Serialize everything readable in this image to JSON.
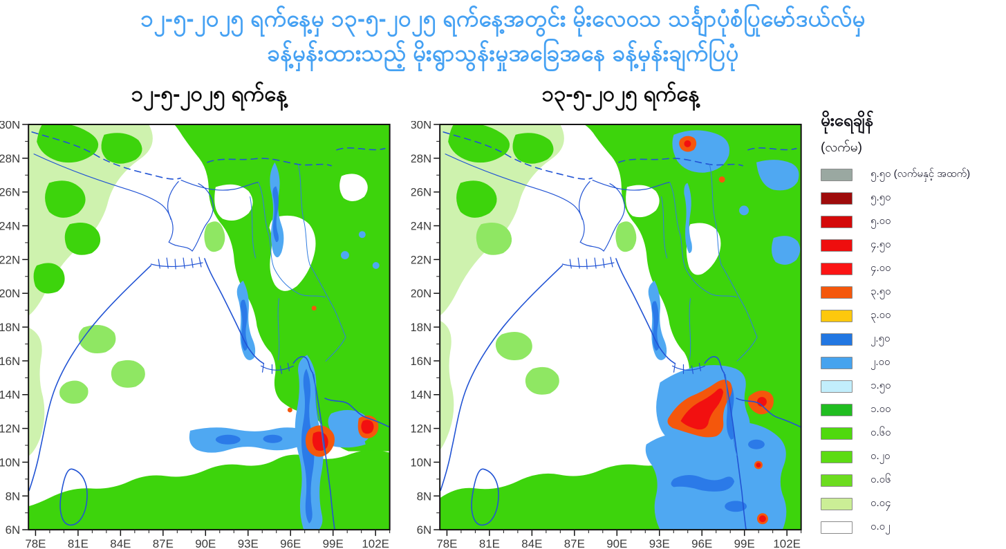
{
  "figure_title": {
    "line1": "၁၂-၅-၂၀၂၅ ရက်နေ့မှ ၁၃-၅-၂၀၂၅ ရက်နေ့အတွင်း မိုးလေဝသ သင်္ချာပုံစံပြုမော်ဒယ်လ်မှ",
    "line2": "ခန့်မှန်းထားသည့် မိုးရွာသွန်းမှုအခြေအနေ ခန့်မှန်းချက်ပြပုံ"
  },
  "panels": [
    {
      "id": "left",
      "title": "၁၂-၅-၂၀၂၅ ရက်နေ့",
      "date": "12-5-2025"
    },
    {
      "id": "right",
      "title": "၁၃-၅-၂၀၂၅ ရက်နေ့",
      "date": "13-5-2025"
    }
  ],
  "axes": {
    "x_tick_labels": [
      "78E",
      "81E",
      "84E",
      "87E",
      "90E",
      "93E",
      "96E",
      "99E",
      "102E"
    ],
    "x_tick_lons": [
      78,
      81,
      84,
      87,
      90,
      93,
      96,
      99,
      102
    ],
    "y_tick_labels": [
      "30N",
      "28N",
      "26N",
      "24N",
      "22N",
      "20N",
      "18N",
      "16N",
      "14N",
      "12N",
      "10N",
      "8N",
      "6N"
    ],
    "y_tick_lats": [
      30,
      28,
      26,
      24,
      22,
      20,
      18,
      16,
      14,
      12,
      10,
      8,
      6
    ],
    "lon_min": 77.5,
    "lon_max": 103,
    "lat_min": 6,
    "lat_max": 30
  },
  "legend": {
    "title": "မိုးရေချိန်",
    "unit": "(လက်မ)",
    "entries": [
      {
        "label": "၅.၅၀ (လက်မနှင့် အထက်)",
        "inches": 5.5,
        "color": "#9aa8a1"
      },
      {
        "label": "၅.၅၀",
        "inches": 5.5,
        "color": "#9e0b0b"
      },
      {
        "label": "၅.၀၀",
        "inches": 5.0,
        "color": "#d40909"
      },
      {
        "label": "၄.၅၀",
        "inches": 4.5,
        "color": "#ef0e0e"
      },
      {
        "label": "၄.၀၀",
        "inches": 4.0,
        "color": "#fb1515"
      },
      {
        "label": "၃.၅၀",
        "inches": 3.5,
        "color": "#f4570c"
      },
      {
        "label": "၃.၀၀",
        "inches": 3.0,
        "color": "#fdc80d"
      },
      {
        "label": "၂.၅၀",
        "inches": 2.5,
        "color": "#2277e2"
      },
      {
        "label": "၂.၀၀",
        "inches": 2.0,
        "color": "#46a3ee"
      },
      {
        "label": "၁.၅၀",
        "inches": 1.5,
        "color": "#c2eefc"
      },
      {
        "label": "၁.၀၀",
        "inches": 1.0,
        "color": "#21bd21"
      },
      {
        "label": "၀.၆၀",
        "inches": 0.6,
        "color": "#4fd90e"
      },
      {
        "label": "၀.၂၀",
        "inches": 0.2,
        "color": "#5cdb14"
      },
      {
        "label": "၀.၀၆",
        "inches": 0.06,
        "color": "#6cdc1f"
      },
      {
        "label": "၀.၀၄",
        "inches": 0.04,
        "color": "#cbee96"
      },
      {
        "label": "၀.၀၂",
        "inches": 0.02,
        "color": "#ffffff"
      }
    ]
  },
  "colors": {
    "title_text": "#45a1f3",
    "panel_title_text": "#0c0c0c",
    "axis_text": "#3b3b3b",
    "coastline": "#2153d4",
    "map_frame": "#111111"
  }
}
